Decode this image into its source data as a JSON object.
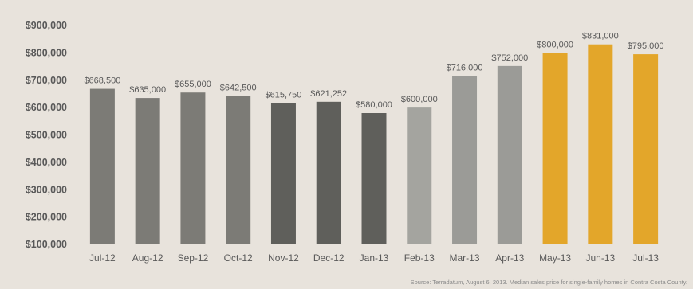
{
  "chart_data": {
    "type": "bar",
    "categories": [
      "Jul-12",
      "Aug-12",
      "Sep-12",
      "Oct-12",
      "Nov-12",
      "Dec-12",
      "Jan-13",
      "Feb-13",
      "Mar-13",
      "Apr-13",
      "May-13",
      "Jun-13",
      "Jul-13"
    ],
    "values": [
      668500,
      635000,
      655000,
      642500,
      615750,
      621252,
      580000,
      600000,
      716000,
      752000,
      800000,
      831000,
      795000
    ],
    "data_labels": [
      "$668,500",
      "$635,000",
      "$655,000",
      "$642,500",
      "$615,750",
      "$621,252",
      "$580,000",
      "$600,000",
      "$716,000",
      "$752,000",
      "$800,000",
      "$831,000",
      "$795,000"
    ],
    "bar_colors": [
      "#7c7b76",
      "#7c7b76",
      "#7c7b76",
      "#7c7b76",
      "#5f5f5b",
      "#5f5f5b",
      "#5f5f5b",
      "#a4a49f",
      "#9b9b97",
      "#9b9b97",
      "#e3a62a",
      "#e3a62a",
      "#e3a62a"
    ],
    "yticks": [
      100000,
      200000,
      300000,
      400000,
      500000,
      600000,
      700000,
      800000,
      900000
    ],
    "ytick_labels": [
      "$100,000",
      "$200,000",
      "$300,000",
      "$400,000",
      "$500,000",
      "$600,000",
      "$700,000",
      "$800,000",
      "$900,000"
    ],
    "ylim": [
      100000,
      900000
    ],
    "grid": false,
    "legend": "none",
    "title": "",
    "xlabel": "",
    "ylabel": "",
    "source_note": "Source: Terradatum,  August 6, 2013. Median sales price for single-family homes in Contra Costa County."
  }
}
